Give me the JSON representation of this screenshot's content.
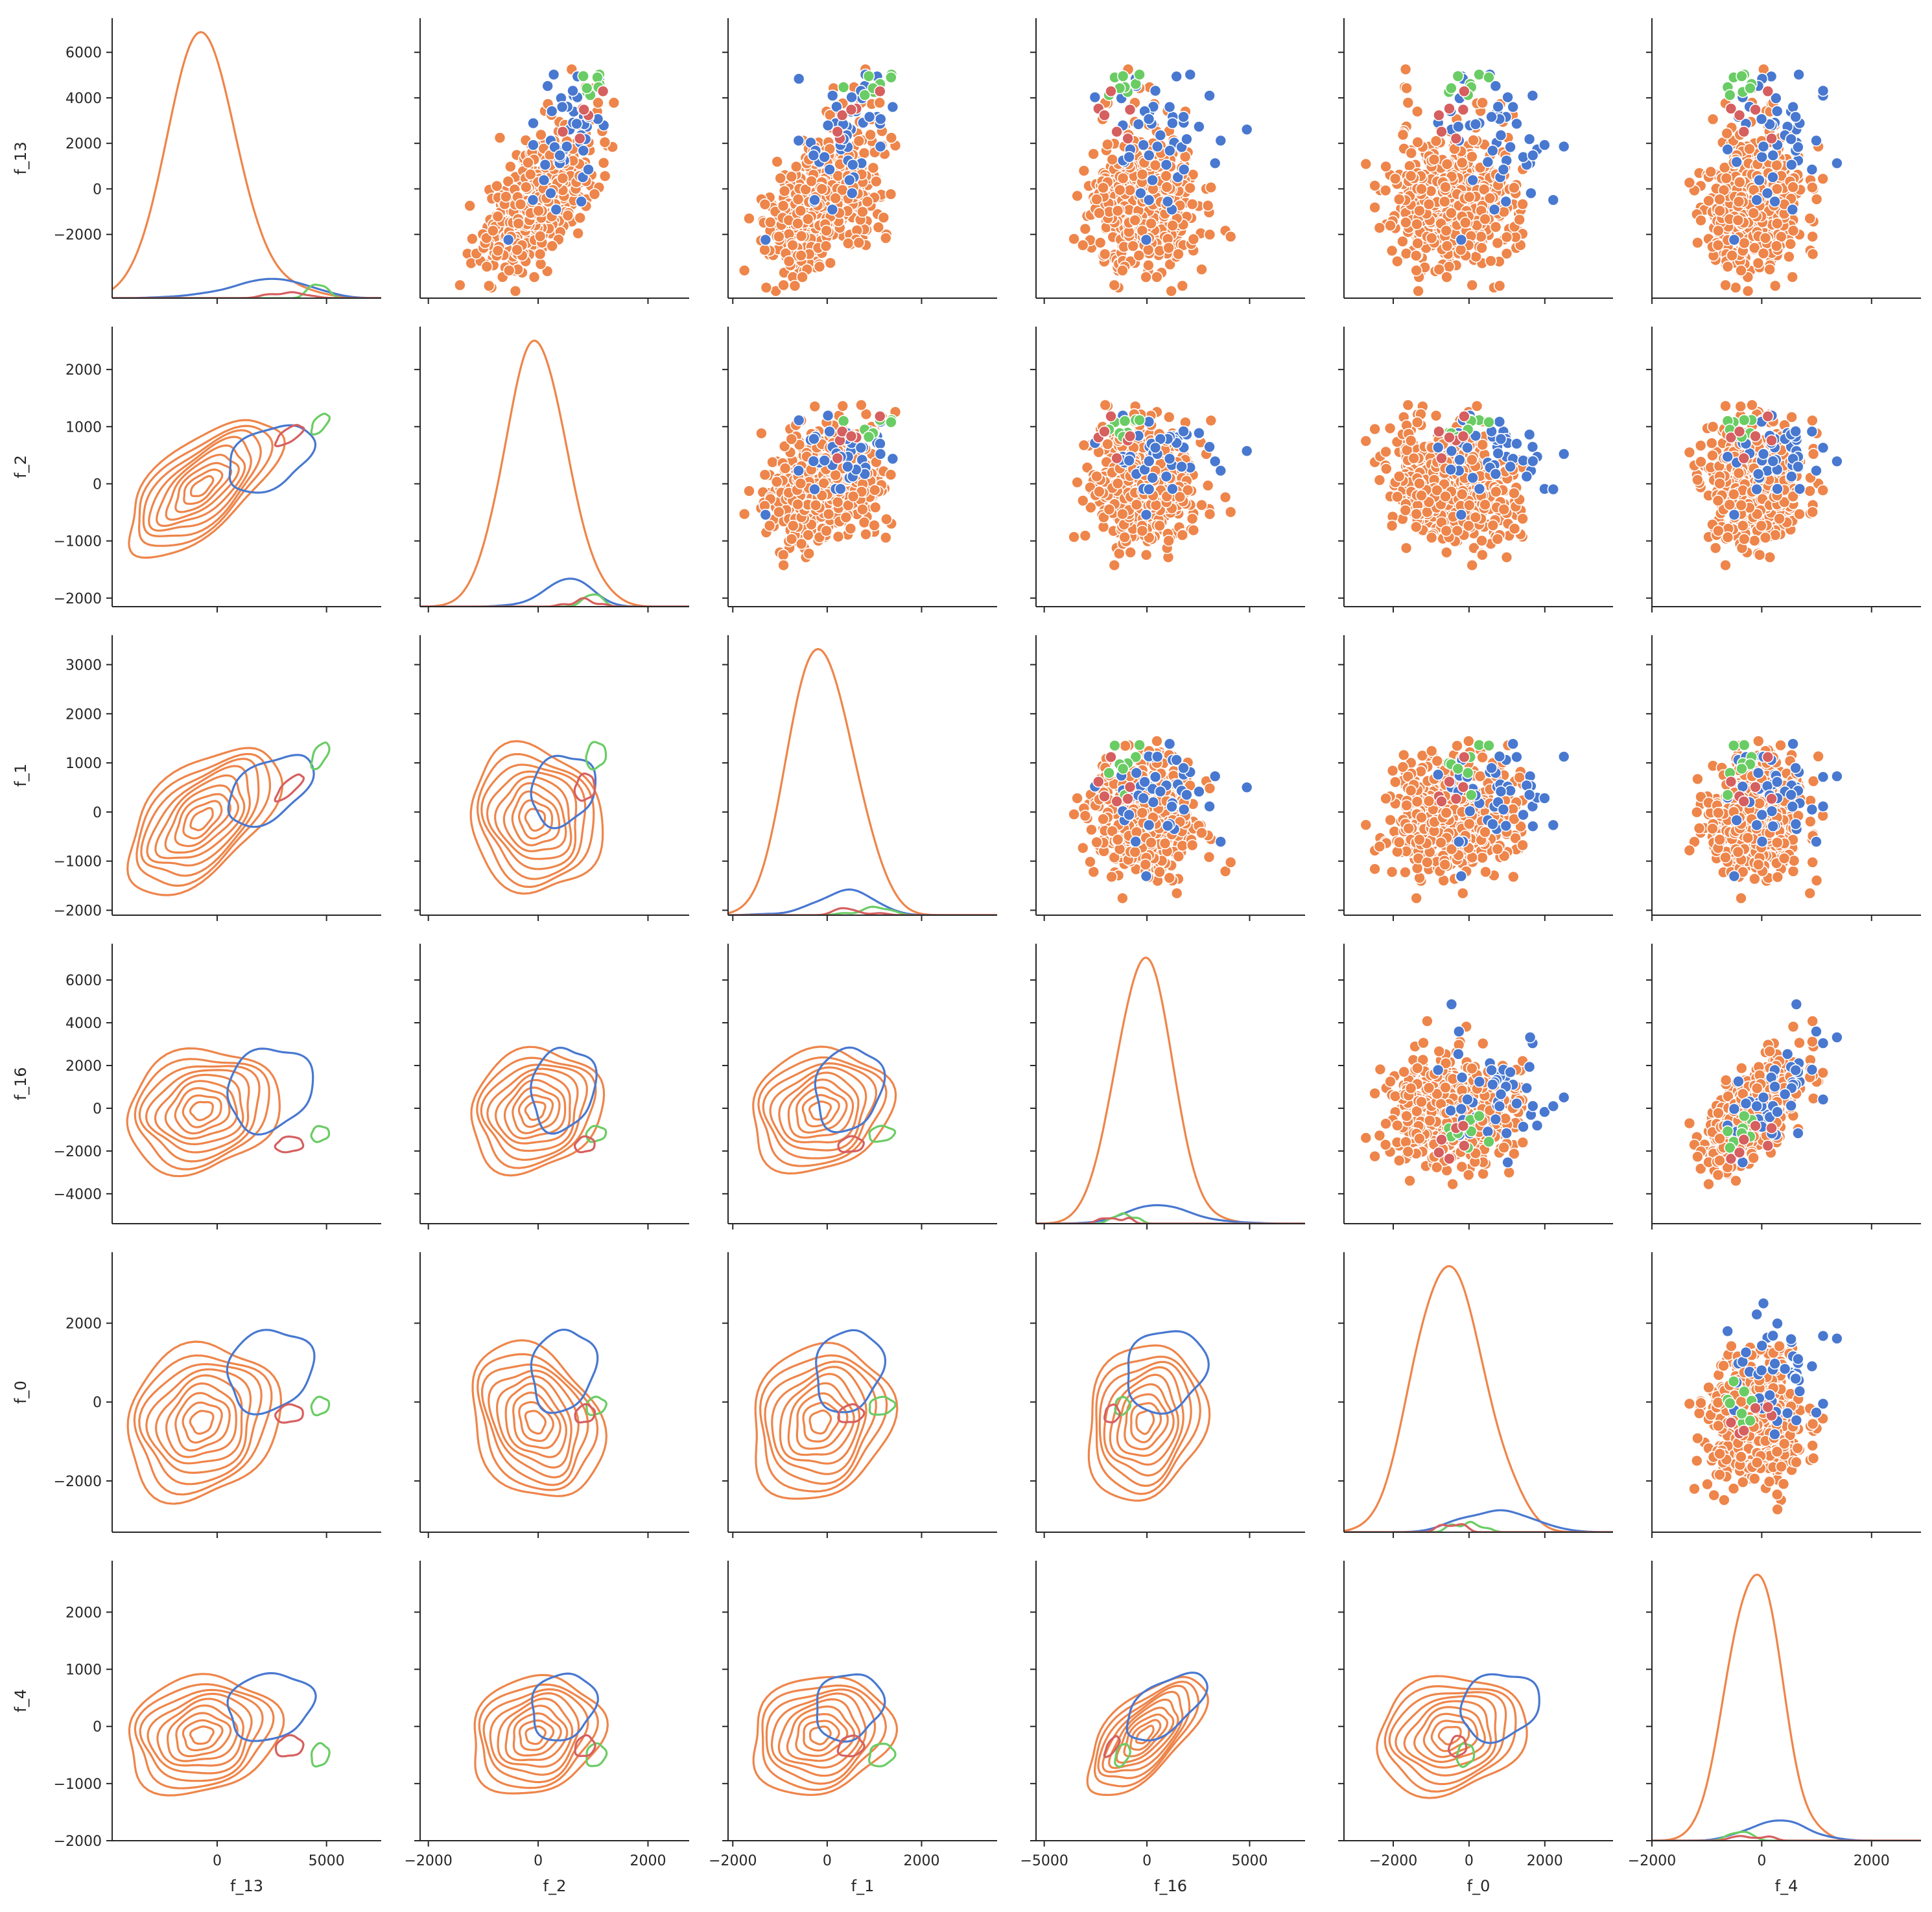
{
  "chart_data": {
    "type": "pairplot",
    "title": "",
    "variables": [
      "f_13",
      "f_2",
      "f_1",
      "f_16",
      "f_0",
      "f_4"
    ],
    "upper": "scatter",
    "diagonal": "kde",
    "lower": "kde contour",
    "grid": false,
    "legend": "none",
    "axis_limits": {
      "f_13": [
        -4800,
        7500
      ],
      "f_2": [
        -2150,
        2750
      ],
      "f_1": [
        -2100,
        3600
      ],
      "f_16": [
        -5400,
        7700
      ],
      "f_0": [
        -3300,
        3800
      ],
      "f_4": [
        -2000,
        2900
      ]
    },
    "x_ticks": {
      "f_13": [
        0,
        5000
      ],
      "f_2": [
        -2000,
        0,
        2000
      ],
      "f_1": [
        -2000,
        0,
        2000
      ],
      "f_16": [
        -5000,
        0,
        5000
      ],
      "f_0": [
        -2000,
        0,
        2000
      ],
      "f_4": [
        -2000,
        0,
        2000
      ]
    },
    "y_ticks": {
      "f_13": [
        -2000,
        0,
        2000,
        4000,
        6000
      ],
      "f_2": [
        -2000,
        -1000,
        0,
        1000,
        2000
      ],
      "f_1": [
        -2000,
        -1000,
        0,
        1000,
        2000,
        3000
      ],
      "f_16": [
        -4000,
        -2000,
        0,
        2000,
        4000,
        6000
      ],
      "f_0": [
        -2000,
        0,
        2000
      ],
      "f_4": [
        -2000,
        -1000,
        0,
        1000,
        2000
      ]
    },
    "groups": [
      {
        "color": "#ee854a",
        "count": 560,
        "mean": {
          "f_13": -700,
          "f_2": -50,
          "f_1": -150,
          "f_16": -100,
          "f_0": -500,
          "f_4": -150
        },
        "sd": {
          "f_13": 1450,
          "f_2": 500,
          "f_1": 620,
          "f_16": 1200,
          "f_0": 820,
          "f_4": 430
        },
        "corr": {
          "f_13|f_2": 0.65,
          "f_13|f_1": 0.55,
          "f_16|f_4": 0.65,
          "f_2|f_1": -0.1,
          "f_0|f_2": -0.25
        }
      },
      {
        "color": "#4878d0",
        "count": 45,
        "mean": {
          "f_13": 2400,
          "f_2": 450,
          "f_1": 450,
          "f_16": 900,
          "f_0": 800,
          "f_4": 350
        },
        "sd": {
          "f_13": 1500,
          "f_2": 450,
          "f_1": 550,
          "f_16": 1500,
          "f_0": 800,
          "f_4": 450
        },
        "corr": {
          "f_13|f_2": 0.4,
          "f_13|f_1": 0.5,
          "f_16|f_4": 0.6
        }
      },
      {
        "color": "#6acc64",
        "count": 8,
        "mean": {
          "f_13": 4700,
          "f_2": 1050,
          "f_1": 1150,
          "f_16": -1200,
          "f_0": -100,
          "f_4": -500
        },
        "sd": {
          "f_13": 450,
          "f_2": 200,
          "f_1": 300,
          "f_16": 400,
          "f_0": 250,
          "f_4": 220
        },
        "corr": {
          "f_13|f_2": 0.6,
          "f_13|f_1": 0.6,
          "f_16|f_4": 0.4
        }
      },
      {
        "color": "#d65f5f",
        "count": 6,
        "mean": {
          "f_13": 3300,
          "f_2": 850,
          "f_1": 500,
          "f_16": -1700,
          "f_0": -300,
          "f_4": -350
        },
        "sd": {
          "f_13": 700,
          "f_2": 200,
          "f_1": 300,
          "f_16": 400,
          "f_0": 250,
          "f_4": 200
        },
        "corr": {
          "f_13|f_2": 0.7,
          "f_13|f_1": 0.8,
          "f_16|f_4": 0.7
        }
      }
    ]
  }
}
